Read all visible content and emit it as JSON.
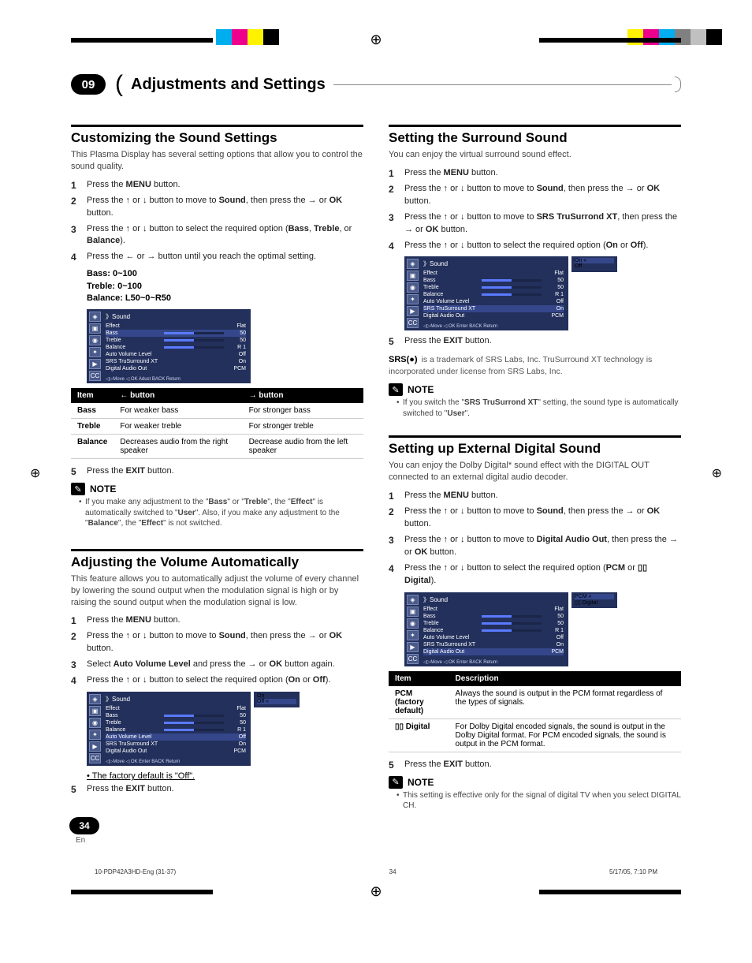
{
  "chapter": {
    "number": "09",
    "title": "Adjustments and Settings"
  },
  "crop_colors_left": [
    "#00aeef",
    "#ec008c",
    "#fff200",
    "#000000"
  ],
  "crop_colors_right": [
    "#fff200",
    "#ec008c",
    "#00aeef",
    "#808080",
    "#c0c0c0",
    "#000000"
  ],
  "left": {
    "sec1": {
      "title": "Customizing the Sound Settings",
      "intro": "This Plasma Display has several setting options that allow you to control the sound quality.",
      "steps": [
        "Press the <b>MENU</b> button.",
        "Press the <span class='arrow'>↑</span> or <span class='arrow'>↓</span> button to move to <b>Sound</b>, then press the <span class='arrow'>→</span> or <b>OK</b> button.",
        "Press the <span class='arrow'>↑</span> or <span class='arrow'>↓</span> button to select the required option (<b>Bass</b>, <b>Treble</b>, or <b>Balance</b>).",
        "Press the <span class='arrow'>←</span> or <span class='arrow'>→</span> button until you reach the optimal setting."
      ],
      "ranges": [
        "Bass: 0~100",
        "Treble: 0~100",
        "Balance: L50~0~R50"
      ],
      "table": {
        "headers": [
          "Item",
          "← button",
          "→ button"
        ],
        "rows": [
          [
            "Bass",
            "For weaker bass",
            "For stronger bass"
          ],
          [
            "Treble",
            "For weaker treble",
            "For stronger treble"
          ],
          [
            "Balance",
            "Decreases audio from the right speaker",
            "Decrease audio from the left speaker"
          ]
        ]
      },
      "step5": "Press the <b>EXIT</b> button.",
      "note": "If you make any adjustment to the \"<b>Bass</b>\" or \"<b>Treble</b>\", the \"<b>Effect</b>\" is automatically switched to \"<b>User</b>\". Also, if you make any adjustment to the \"<b>Balance</b>\", the \"<b>Effect</b>\" is not switched."
    },
    "sec2": {
      "title": "Adjusting the Volume Automatically",
      "intro": "This feature allows you to automatically adjust the volume of every channel by lowering the sound output when the modulation signal is high or by raising the sound output when the modulation signal is low.",
      "steps": [
        "Press the <b>MENU</b> button.",
        "Press the <span class='arrow'>↑</span> or <span class='arrow'>↓</span> button to move to <b>Sound</b>, then press the <span class='arrow'>→</span> or <b>OK</b> button.",
        "Select <b>Auto Volume Level</b> and press the <span class='arrow'>→</span> or <b>OK</b> button again.",
        "Press the <span class='arrow'>↑</span> or <span class='arrow'>↓</span> button to select the required option (<b>On</b> or <b>Off</b>)."
      ],
      "factory": "• The factory default is \"Off\".",
      "step5": "Press the <b>EXIT</b> button."
    }
  },
  "right": {
    "sec1": {
      "title": "Setting the Surround Sound",
      "intro": "You can enjoy the virtual surround sound effect.",
      "steps": [
        "Press the <b>MENU</b> button.",
        "Press the <span class='arrow'>↑</span> or <span class='arrow'>↓</span> button to move to <b>Sound</b>, then press the <span class='arrow'>→</span> or <b>OK</b> button.",
        "Press the <span class='arrow'>↑</span> or <span class='arrow'>↓</span> button to move to <b>SRS TruSurrond XT</b>, then press the <span class='arrow'>→</span> or <b>OK</b> button.",
        "Press the <span class='arrow'>↑</span> or <span class='arrow'>↓</span> button to select the required option (<b>On</b> or <b>Off</b>)."
      ],
      "step5": "Press the <b>EXIT</b> button.",
      "srs": " is a trademark of SRS Labs, Inc. TruSurround XT technology is incorporated under license from SRS Labs, Inc.",
      "note": "If you switch the \"<b>SRS TruSurrond XT</b>\" setting, the sound type is automatically switched to \"<b>User</b>\"."
    },
    "sec2": {
      "title": "Setting up External Digital Sound",
      "intro": "You can enjoy the Dolby Digital* sound effect with the DIGITAL OUT connected to an external digital audio decoder.",
      "steps": [
        "Press the <b>MENU</b> button.",
        "Press the <span class='arrow'>↑</span> or <span class='arrow'>↓</span> button to move to <b>Sound</b>, then press the <span class='arrow'>→</span> or <b>OK</b> button.",
        "Press the <span class='arrow'>↑</span> or <span class='arrow'>↓</span> button to move to <b>Digital Audio Out</b>, then press the <span class='arrow'>→</span> or <b>OK</b> button.",
        "Press the <span class='arrow'>↑</span> or <span class='arrow'>↓</span> button to select the required option (<b>PCM</b> or <b>▯▯ Digital</b>)."
      ],
      "table": {
        "headers": [
          "Item",
          "Description"
        ],
        "rows": [
          [
            "PCM (factory default)",
            "Always the sound is output in the PCM format regardless of the types of signals."
          ],
          [
            "▯▯ Digital",
            "For Dolby Digital encoded signals, the sound is output in the Dolby Digital format. For PCM encoded signals, the sound is output in the PCM format."
          ]
        ]
      },
      "step5": "Press the <b>EXIT</b> button.",
      "note": "This setting is effective only for the signal of digital TV when you select DIGITAL CH."
    }
  },
  "osd": {
    "title": "》Sound",
    "rows": [
      {
        "label": "Effect",
        "val": "Flat",
        "bar": false
      },
      {
        "label": "Bass",
        "val": "50",
        "bar": true
      },
      {
        "label": "Treble",
        "val": "50",
        "bar": true
      },
      {
        "label": "Balance",
        "val": "R 1",
        "bar": true
      },
      {
        "label": "Auto Volume Level",
        "val": "Off",
        "bar": false
      },
      {
        "label": "SRS TruSurround XT",
        "val": "On",
        "bar": false
      },
      {
        "label": "Digital Audio Out",
        "val": "PCM",
        "bar": false
      }
    ],
    "foot_adjust": "◁▷Move    ◁ OK Adust   BACK Return",
    "foot_enter": "◁▷Move    ◁ OK Enter   BACK Return",
    "side_onoff": [
      "On",
      "Off"
    ],
    "side_pcm": [
      "PCM",
      "▯▯ Digital"
    ]
  },
  "note_label": "NOTE",
  "srs_logo": "SRS(●)",
  "page": {
    "num": "34",
    "lang": "En"
  },
  "footer": {
    "left": "10-PDP42A3HD-Eng (31-37)",
    "mid": "34",
    "right": "5/17/05, 7:10 PM"
  }
}
